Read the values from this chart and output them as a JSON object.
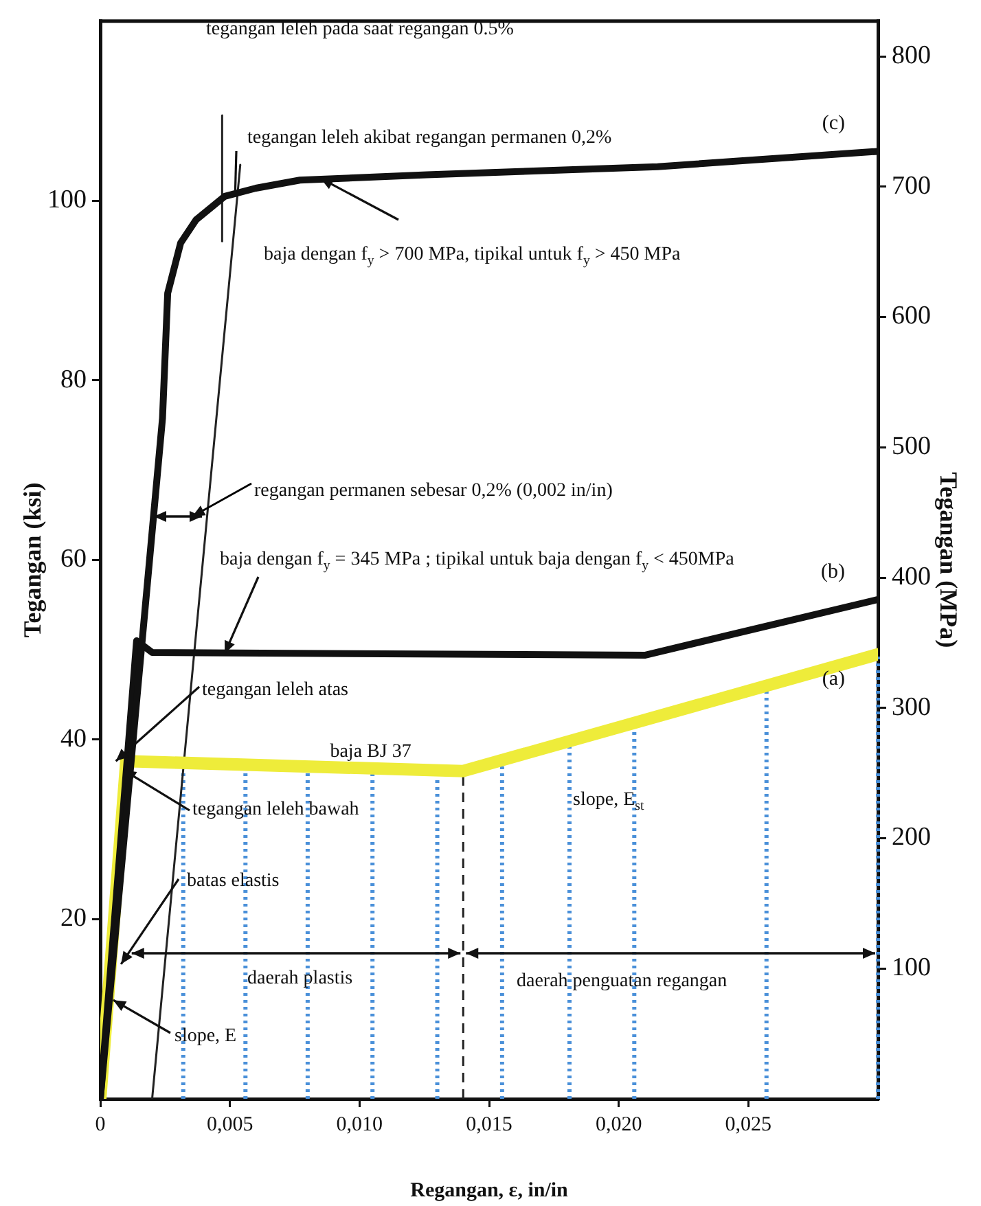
{
  "chart_data": {
    "type": "line",
    "xlabel": "Regangan, ε, in/in",
    "ylabel": "Tegangan (ksi)",
    "y2label": "Tegangan (MPa)",
    "xlim": [
      0,
      0.03
    ],
    "xticks": [
      0,
      {
        "value": 0.005,
        "label": "0,005"
      },
      {
        "value": 0.01,
        "label": "0,010"
      },
      {
        "value": 0.015,
        "label": "0,015"
      },
      {
        "value": 0.02,
        "label": "0,020"
      },
      {
        "value": 0.025,
        "label": "0,025"
      }
    ],
    "ylim": [
      0,
      120
    ],
    "yticks": [
      20,
      40,
      60,
      80,
      100
    ],
    "y2lim": [
      0,
      827
    ],
    "y2ticks": [
      100,
      200,
      300,
      400,
      500,
      600,
      700,
      800
    ],
    "grid": false,
    "legend": false,
    "marker": "none",
    "line_style": "solid",
    "series": [
      {
        "name": "(c)",
        "color": "#111111",
        "x": [
          0,
          0.0024,
          0.0026,
          0.0031,
          0.0037,
          0.0048,
          0.006,
          0.0077,
          0.0126,
          0.0215,
          0.03
        ],
        "values": [
          0,
          75.8,
          89.7,
          95.3,
          97.9,
          100.5,
          101.4,
          102.3,
          102.9,
          103.8,
          105.5
        ]
      },
      {
        "name": "(b)",
        "color": "#111111",
        "x": [
          0,
          0.0014,
          0.002,
          0.021,
          0.03
        ],
        "values": [
          0,
          51,
          49.7,
          49.4,
          55.6
        ]
      },
      {
        "name": "(a)",
        "color": "#eeec3a",
        "x": [
          0,
          0.001,
          0.014,
          0.03
        ],
        "values": [
          0,
          37.6,
          36.5,
          49.5
        ]
      },
      {
        "color": "#222222",
        "x": [
          0.002,
          0.0054
        ],
        "values": [
          0,
          104
        ]
      },
      {
        "color": "#222222",
        "x": [
          0.0047,
          0.0047
        ],
        "values": [
          95.5,
          109.5
        ]
      }
    ],
    "ref_lines": [
      {
        "axis": "x",
        "value": 0.014,
        "color": "#222222",
        "line_style": "dashed"
      },
      {
        "axis": "x",
        "value": 0.0032,
        "color": "#4a90d9",
        "line_style": "dotted"
      },
      {
        "axis": "x",
        "value": 0.0056,
        "color": "#4a90d9",
        "line_style": "dotted"
      },
      {
        "axis": "x",
        "value": 0.008,
        "color": "#4a90d9",
        "line_style": "dotted"
      },
      {
        "axis": "x",
        "value": 0.0105,
        "color": "#4a90d9",
        "line_style": "dotted"
      },
      {
        "axis": "x",
        "value": 0.013,
        "color": "#4a90d9",
        "line_style": "dotted"
      },
      {
        "axis": "x",
        "value": 0.0155,
        "color": "#4a90d9",
        "line_style": "dotted"
      },
      {
        "axis": "x",
        "value": 0.0181,
        "color": "#4a90d9",
        "line_style": "dotted"
      },
      {
        "axis": "x",
        "value": 0.0206,
        "color": "#4a90d9",
        "line_style": "dotted"
      },
      {
        "axis": "x",
        "value": 0.0257,
        "color": "#4a90d9",
        "line_style": "dotted"
      },
      {
        "axis": "x",
        "value": 0.03,
        "color": "#4a90d9",
        "line_style": "dotted"
      }
    ],
    "annotations": [
      "tegangan leleh pada saat regangan 0.5%",
      {
        "text": "tegangan leleh akibat regangan permanen 0,2%",
        "x": 0.0052,
        "y": 100.5
      },
      {
        "text": "baja dengan f$_{y}$ > 700 MPa, tipikal untuk f$_{y}$ > 450 MPa",
        "x": 0.0085,
        "y": 102.5
      },
      "regangan permanen sebesar 0,2% (0,002 in/in)",
      {
        "text": "baja dengan f$_{y}$ = 345 MPa ; tipikal untuk baja dengan f$_{y}$ < 450MPa",
        "x": 0.0048,
        "y": 49.6
      },
      {
        "text": "tegangan leleh atas",
        "x": 0.0006,
        "y": 37.6
      },
      {
        "text": "baja BJ 37",
        "x": 0.0104,
        "y": 36.7
      },
      {
        "text": "tegangan leleh bawah",
        "x": 0.0009,
        "y": 36.6
      },
      {
        "text": "slope, E$_{st}$",
        "x": 0.0185,
        "y": 40.2
      },
      {
        "text": "batas elastis",
        "x": 0.0008,
        "y": 15
      },
      "daerah plastis",
      "daerah penguatan regangan",
      {
        "text": "slope, E",
        "x": 0.0005,
        "y": 11
      }
    ]
  }
}
